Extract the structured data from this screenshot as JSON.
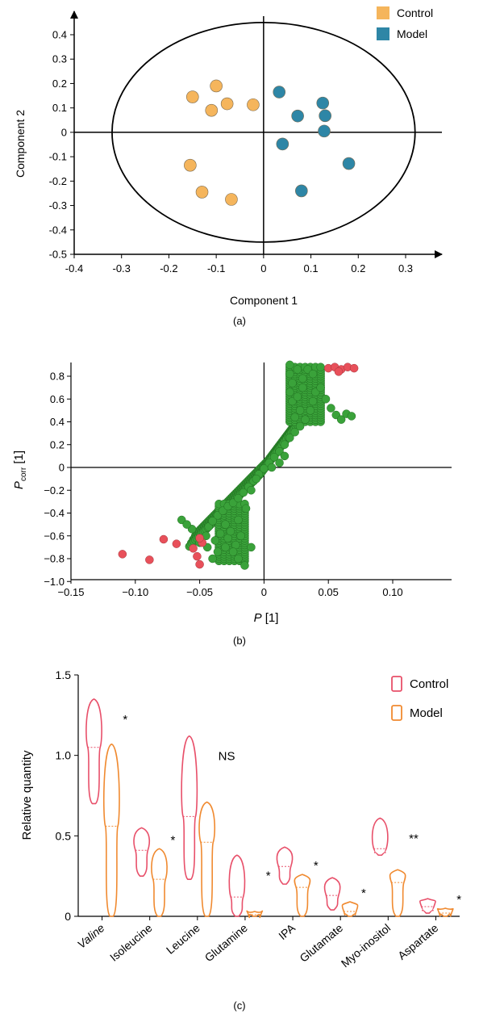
{
  "panel_a_label": "(a)",
  "panel_b_label": "(b)",
  "panel_c_label": "(c)",
  "chart_data": [
    {
      "panel": "a",
      "type": "scatter",
      "xlabel": "Component 1",
      "ylabel": "Component 2",
      "xlim": [
        -0.4,
        0.3
      ],
      "ylim": [
        -0.5,
        0.4
      ],
      "xticks": [
        "-0.4",
        "-0.3",
        "-0.2",
        "-0.1",
        "0",
        "0.1",
        "0.2",
        "0.3"
      ],
      "yticks": [
        "-0.5",
        "-0.4",
        "-0.3",
        "-0.2",
        "-0.1",
        "0",
        "0.1",
        "0.2",
        "0.3",
        "0.4"
      ],
      "legend": [
        "Control",
        "Model"
      ],
      "legend_position": "top-right",
      "colors": {
        "Control": "#f5b55c",
        "Model": "#2e86a6",
        "ellipse": "#000000"
      },
      "series": [
        {
          "name": "Control",
          "points": [
            [
              -0.15,
              0.145
            ],
            [
              -0.1,
              0.19
            ],
            [
              -0.11,
              0.09
            ],
            [
              -0.077,
              0.117
            ],
            [
              -0.022,
              0.113
            ],
            [
              -0.155,
              -0.135
            ],
            [
              -0.13,
              -0.245
            ],
            [
              -0.068,
              -0.275
            ]
          ]
        },
        {
          "name": "Model",
          "points": [
            [
              0.033,
              0.165
            ],
            [
              0.072,
              0.067
            ],
            [
              0.125,
              0.12
            ],
            [
              0.13,
              0.068
            ],
            [
              0.128,
              0.005
            ],
            [
              0.04,
              -0.048
            ],
            [
              0.18,
              -0.128
            ],
            [
              0.08,
              -0.24
            ]
          ]
        }
      ],
      "ellipse": {
        "cx": 0,
        "cy": 0,
        "rx": 0.32,
        "ry": 0.45
      }
    },
    {
      "panel": "b",
      "type": "scatter",
      "xlabel": "P [1]",
      "ylabel": "Pcorr [1]",
      "xlim": [
        -0.15,
        0.14
      ],
      "ylim": [
        -1.0,
        0.92
      ],
      "xticks": [
        "-0.15",
        "-0.10",
        "-0.05",
        "0",
        "0.05",
        "0.10"
      ],
      "yticks": [
        "0.8",
        "0.6",
        "0.4",
        "0.2",
        "0",
        "-0.2",
        "-0.4",
        "-0.6",
        "-0.8",
        "-1.0"
      ],
      "colors": {
        "main": "#3aa23a",
        "highlight": "#e8505a"
      },
      "series": [
        {
          "name": "",
          "color": "green",
          "points": [
            [
              -0.064,
              -0.46
            ],
            [
              -0.05,
              -0.66
            ],
            [
              -0.045,
              -0.6
            ],
            [
              -0.043,
              -0.52
            ],
            [
              -0.04,
              -0.47
            ],
            [
              -0.036,
              -0.42
            ],
            [
              -0.032,
              -0.38
            ],
            [
              -0.028,
              -0.34
            ],
            [
              -0.024,
              -0.31
            ],
            [
              -0.02,
              -0.27
            ],
            [
              -0.016,
              -0.22
            ],
            [
              -0.012,
              -0.17
            ],
            [
              -0.008,
              -0.12
            ],
            [
              -0.004,
              -0.06
            ],
            [
              0.0,
              -0.01
            ],
            [
              0.004,
              0.04
            ],
            [
              0.008,
              0.09
            ],
            [
              0.012,
              0.14
            ],
            [
              0.016,
              0.2
            ],
            [
              0.02,
              0.26
            ],
            [
              0.024,
              0.31
            ],
            [
              0.028,
              0.36
            ],
            [
              0.032,
              0.42
            ],
            [
              0.036,
              0.5
            ],
            [
              0.038,
              0.58
            ],
            [
              0.04,
              0.66
            ],
            [
              0.044,
              0.7
            ],
            [
              0.048,
              0.6
            ],
            [
              0.052,
              0.52
            ],
            [
              0.056,
              0.46
            ],
            [
              0.06,
              0.42
            ],
            [
              0.064,
              0.47
            ],
            [
              0.068,
              0.45
            ],
            [
              0.02,
              0.9
            ],
            [
              0.02,
              0.82
            ],
            [
              0.022,
              0.74
            ],
            [
              0.02,
              0.66
            ],
            [
              0.022,
              0.58
            ],
            [
              0.026,
              0.86
            ],
            [
              0.03,
              0.78
            ],
            [
              0.034,
              0.86
            ],
            [
              0.038,
              0.82
            ],
            [
              0.03,
              0.7
            ],
            [
              0.026,
              0.62
            ],
            [
              0.028,
              0.5
            ],
            [
              0.024,
              0.44
            ],
            [
              -0.03,
              -0.5
            ],
            [
              -0.034,
              -0.58
            ],
            [
              -0.028,
              -0.62
            ],
            [
              -0.022,
              -0.68
            ],
            [
              -0.018,
              -0.6
            ],
            [
              -0.024,
              -0.74
            ],
            [
              -0.03,
              -0.7
            ],
            [
              -0.036,
              -0.74
            ],
            [
              -0.04,
              -0.8
            ],
            [
              -0.02,
              -0.8
            ],
            [
              -0.015,
              -0.86
            ],
            [
              -0.01,
              -0.7
            ],
            [
              -0.026,
              -0.56
            ],
            [
              -0.02,
              -0.46
            ],
            [
              -0.014,
              -0.36
            ],
            [
              -0.038,
              -0.64
            ],
            [
              -0.044,
              -0.7
            ],
            [
              -0.056,
              -0.54
            ],
            [
              -0.06,
              -0.5
            ],
            [
              0.012,
              0.04
            ],
            [
              0.016,
              0.1
            ],
            [
              0.006,
              0.0
            ],
            [
              -0.006,
              -0.1
            ],
            [
              -0.01,
              -0.2
            ]
          ]
        },
        {
          "name": "",
          "color": "red",
          "points": [
            [
              -0.11,
              -0.76
            ],
            [
              -0.089,
              -0.81
            ],
            [
              -0.078,
              -0.63
            ],
            [
              -0.068,
              -0.67
            ],
            [
              -0.055,
              -0.71
            ],
            [
              -0.052,
              -0.78
            ],
            [
              -0.05,
              -0.85
            ],
            [
              -0.048,
              -0.66
            ],
            [
              -0.05,
              -0.62
            ],
            [
              0.05,
              0.87
            ],
            [
              0.055,
              0.88
            ],
            [
              0.06,
              0.86
            ],
            [
              0.065,
              0.88
            ],
            [
              0.07,
              0.87
            ],
            [
              0.058,
              0.84
            ]
          ]
        }
      ]
    },
    {
      "panel": "c",
      "type": "violin",
      "ylabel": "Relative quantity",
      "ylim": [
        0,
        1.5
      ],
      "yticks": [
        "0",
        "0.5",
        "1.0",
        "1.5"
      ],
      "categories": [
        "Valine",
        "Isoleucine",
        "Leucine",
        "Glutamine",
        "IPA",
        "Glutamate",
        "Myo-inositol",
        "Aspartate"
      ],
      "significance": [
        "*",
        "*",
        "NS",
        "*",
        "*",
        "*",
        "**",
        "*"
      ],
      "legend": [
        "Control",
        "Model"
      ],
      "legend_position": "top-right",
      "colors": {
        "Control": "#e8506a",
        "Model": "#f08a30"
      },
      "series": [
        {
          "name": "Control",
          "ranges": [
            [
              0.7,
              1.35
            ],
            [
              0.25,
              0.55
            ],
            [
              0.23,
              1.12
            ],
            [
              0.0,
              0.38
            ],
            [
              0.2,
              0.43
            ],
            [
              0.04,
              0.24
            ],
            [
              0.38,
              0.61
            ],
            [
              0.02,
              0.11
            ]
          ],
          "medians": [
            1.05,
            0.41,
            0.62,
            0.12,
            0.31,
            0.13,
            0.42,
            0.06
          ]
        },
        {
          "name": "Model",
          "ranges": [
            [
              0.0,
              1.07
            ],
            [
              0.0,
              0.42
            ],
            [
              0.0,
              0.71
            ],
            [
              0.0,
              0.03
            ],
            [
              0.0,
              0.26
            ],
            [
              0.0,
              0.09
            ],
            [
              0.0,
              0.29
            ],
            [
              0.0,
              0.05
            ]
          ],
          "medians": [
            0.56,
            0.23,
            0.46,
            0.01,
            0.18,
            0.03,
            0.21,
            0.02
          ]
        }
      ]
    }
  ]
}
